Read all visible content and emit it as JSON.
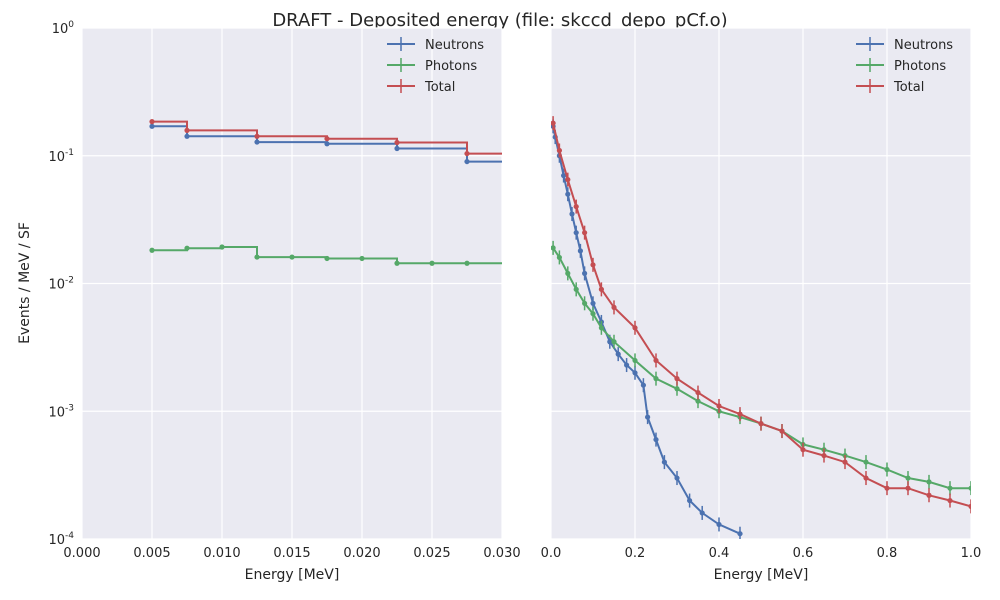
{
  "figure": {
    "title": "DRAFT - Deposited energy (file: skccd_depo_pCf.o)",
    "ylabel": "Events / MeV / SF"
  },
  "colors": {
    "Neutrons": "#4c72b0",
    "Photons": "#55a868",
    "Total": "#c44e52",
    "axes_bg": "#eaeaf2",
    "grid": "#ffffff"
  },
  "y_ticks": [
    {
      "label": "10",
      "exp": "-4",
      "v": 0.0001
    },
    {
      "label": "10",
      "exp": "-3",
      "v": 0.001
    },
    {
      "label": "10",
      "exp": "-2",
      "v": 0.01
    },
    {
      "label": "10",
      "exp": "-1",
      "v": 0.1
    },
    {
      "label": "10",
      "exp": "0",
      "v": 1
    }
  ],
  "chart_data": [
    {
      "type": "line",
      "xlabel": "Energy [MeV]",
      "xlim": [
        0,
        0.03
      ],
      "ylim": [
        0.0001,
        1
      ],
      "yscale": "log",
      "grid": true,
      "legend": "top-right",
      "x_ticks": [
        "0.000",
        "0.005",
        "0.010",
        "0.015",
        "0.020",
        "0.025",
        "0.030"
      ],
      "series": [
        {
          "name": "Neutrons",
          "x": [
            0.005,
            0.0075,
            0.0125,
            0.0175,
            0.0225,
            0.0275
          ],
          "y": [
            0.17,
            0.142,
            0.128,
            0.124,
            0.114,
            0.09
          ],
          "edge": 0.03
        },
        {
          "name": "Photons",
          "x": [
            0.005,
            0.0075,
            0.01,
            0.0125,
            0.015,
            0.0175,
            0.02,
            0.0225,
            0.025,
            0.0275
          ],
          "y": [
            0.0182,
            0.0189,
            0.0193,
            0.0161,
            0.0161,
            0.0157,
            0.0157,
            0.0144,
            0.0144,
            0.0144
          ],
          "edge": 0.03
        },
        {
          "name": "Total",
          "x": [
            0.005,
            0.0075,
            0.0125,
            0.0175,
            0.0225,
            0.0275
          ],
          "y": [
            0.185,
            0.158,
            0.142,
            0.136,
            0.127,
            0.104
          ],
          "edge": 0.03
        }
      ]
    },
    {
      "type": "line",
      "xlabel": "Energy [MeV]",
      "xlim": [
        0,
        1
      ],
      "ylim": [
        0.0001,
        1
      ],
      "yscale": "log",
      "grid": true,
      "legend": "top-right",
      "x_ticks": [
        "0.0",
        "0.2",
        "0.4",
        "0.6",
        "0.8",
        "1.0"
      ],
      "series": [
        {
          "name": "Neutrons",
          "x": [
            0.005,
            0.01,
            0.02,
            0.03,
            0.04,
            0.05,
            0.06,
            0.07,
            0.08,
            0.1,
            0.12,
            0.14,
            0.16,
            0.18,
            0.2,
            0.22,
            0.23,
            0.25,
            0.27,
            0.3,
            0.33,
            0.36,
            0.4,
            0.45
          ],
          "y": [
            0.17,
            0.14,
            0.1,
            0.07,
            0.05,
            0.035,
            0.025,
            0.018,
            0.012,
            0.007,
            0.005,
            0.0035,
            0.0028,
            0.0023,
            0.002,
            0.0016,
            0.0009,
            0.0006,
            0.0004,
            0.0003,
            0.0002,
            0.00016,
            0.00013,
            0.00011
          ]
        },
        {
          "name": "Photons",
          "x": [
            0.005,
            0.02,
            0.04,
            0.06,
            0.08,
            0.1,
            0.12,
            0.15,
            0.2,
            0.25,
            0.3,
            0.35,
            0.4,
            0.45,
            0.5,
            0.55,
            0.6,
            0.65,
            0.7,
            0.75,
            0.8,
            0.85,
            0.9,
            0.95,
            1.0
          ],
          "y": [
            0.019,
            0.016,
            0.012,
            0.009,
            0.007,
            0.0058,
            0.0045,
            0.0035,
            0.0025,
            0.0018,
            0.0015,
            0.0012,
            0.001,
            0.0009,
            0.0008,
            0.0007,
            0.00055,
            0.0005,
            0.00045,
            0.0004,
            0.00035,
            0.0003,
            0.00028,
            0.00025,
            0.00025
          ]
        },
        {
          "name": "Total",
          "x": [
            0.005,
            0.02,
            0.04,
            0.06,
            0.08,
            0.1,
            0.12,
            0.15,
            0.2,
            0.25,
            0.3,
            0.35,
            0.4,
            0.45,
            0.5,
            0.55,
            0.6,
            0.65,
            0.7,
            0.75,
            0.8,
            0.85,
            0.9,
            0.95,
            1.0
          ],
          "y": [
            0.18,
            0.11,
            0.065,
            0.04,
            0.025,
            0.014,
            0.009,
            0.0065,
            0.0045,
            0.0025,
            0.0018,
            0.0014,
            0.0011,
            0.00095,
            0.0008,
            0.0007,
            0.0005,
            0.00045,
            0.0004,
            0.0003,
            0.00025,
            0.00025,
            0.00022,
            0.0002,
            0.00018
          ]
        }
      ]
    }
  ]
}
